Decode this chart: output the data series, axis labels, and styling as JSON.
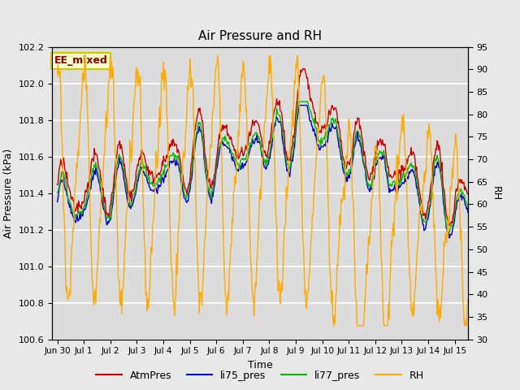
{
  "title": "Air Pressure and RH",
  "xlabel": "Time",
  "ylabel_left": "Air Pressure (kPa)",
  "ylabel_right": "RH",
  "ylim_left": [
    100.6,
    102.2
  ],
  "ylim_right": [
    30,
    95
  ],
  "yticks_left": [
    100.6,
    100.8,
    101.0,
    101.2,
    101.4,
    101.6,
    101.8,
    102.0,
    102.2
  ],
  "yticks_right": [
    30,
    35,
    40,
    45,
    50,
    55,
    60,
    65,
    70,
    75,
    80,
    85,
    90,
    95
  ],
  "colors": {
    "AtmPres": "#cc0000",
    "li75_pres": "#0000cc",
    "li77_pres": "#00bb00",
    "RH": "#ffaa00"
  },
  "legend_labels": [
    "AtmPres",
    "li75_pres",
    "li77_pres",
    "RH"
  ],
  "annotation_text": "EE_mixed",
  "annotation_bg": "#ffffcc",
  "annotation_border": "#cccc00",
  "background_color": "#e8e8e8",
  "plot_bg": "#dcdcdc",
  "grid_color": "#ffffff",
  "seed": 42,
  "n_points": 600,
  "start_day": 0,
  "end_day": 15.5
}
